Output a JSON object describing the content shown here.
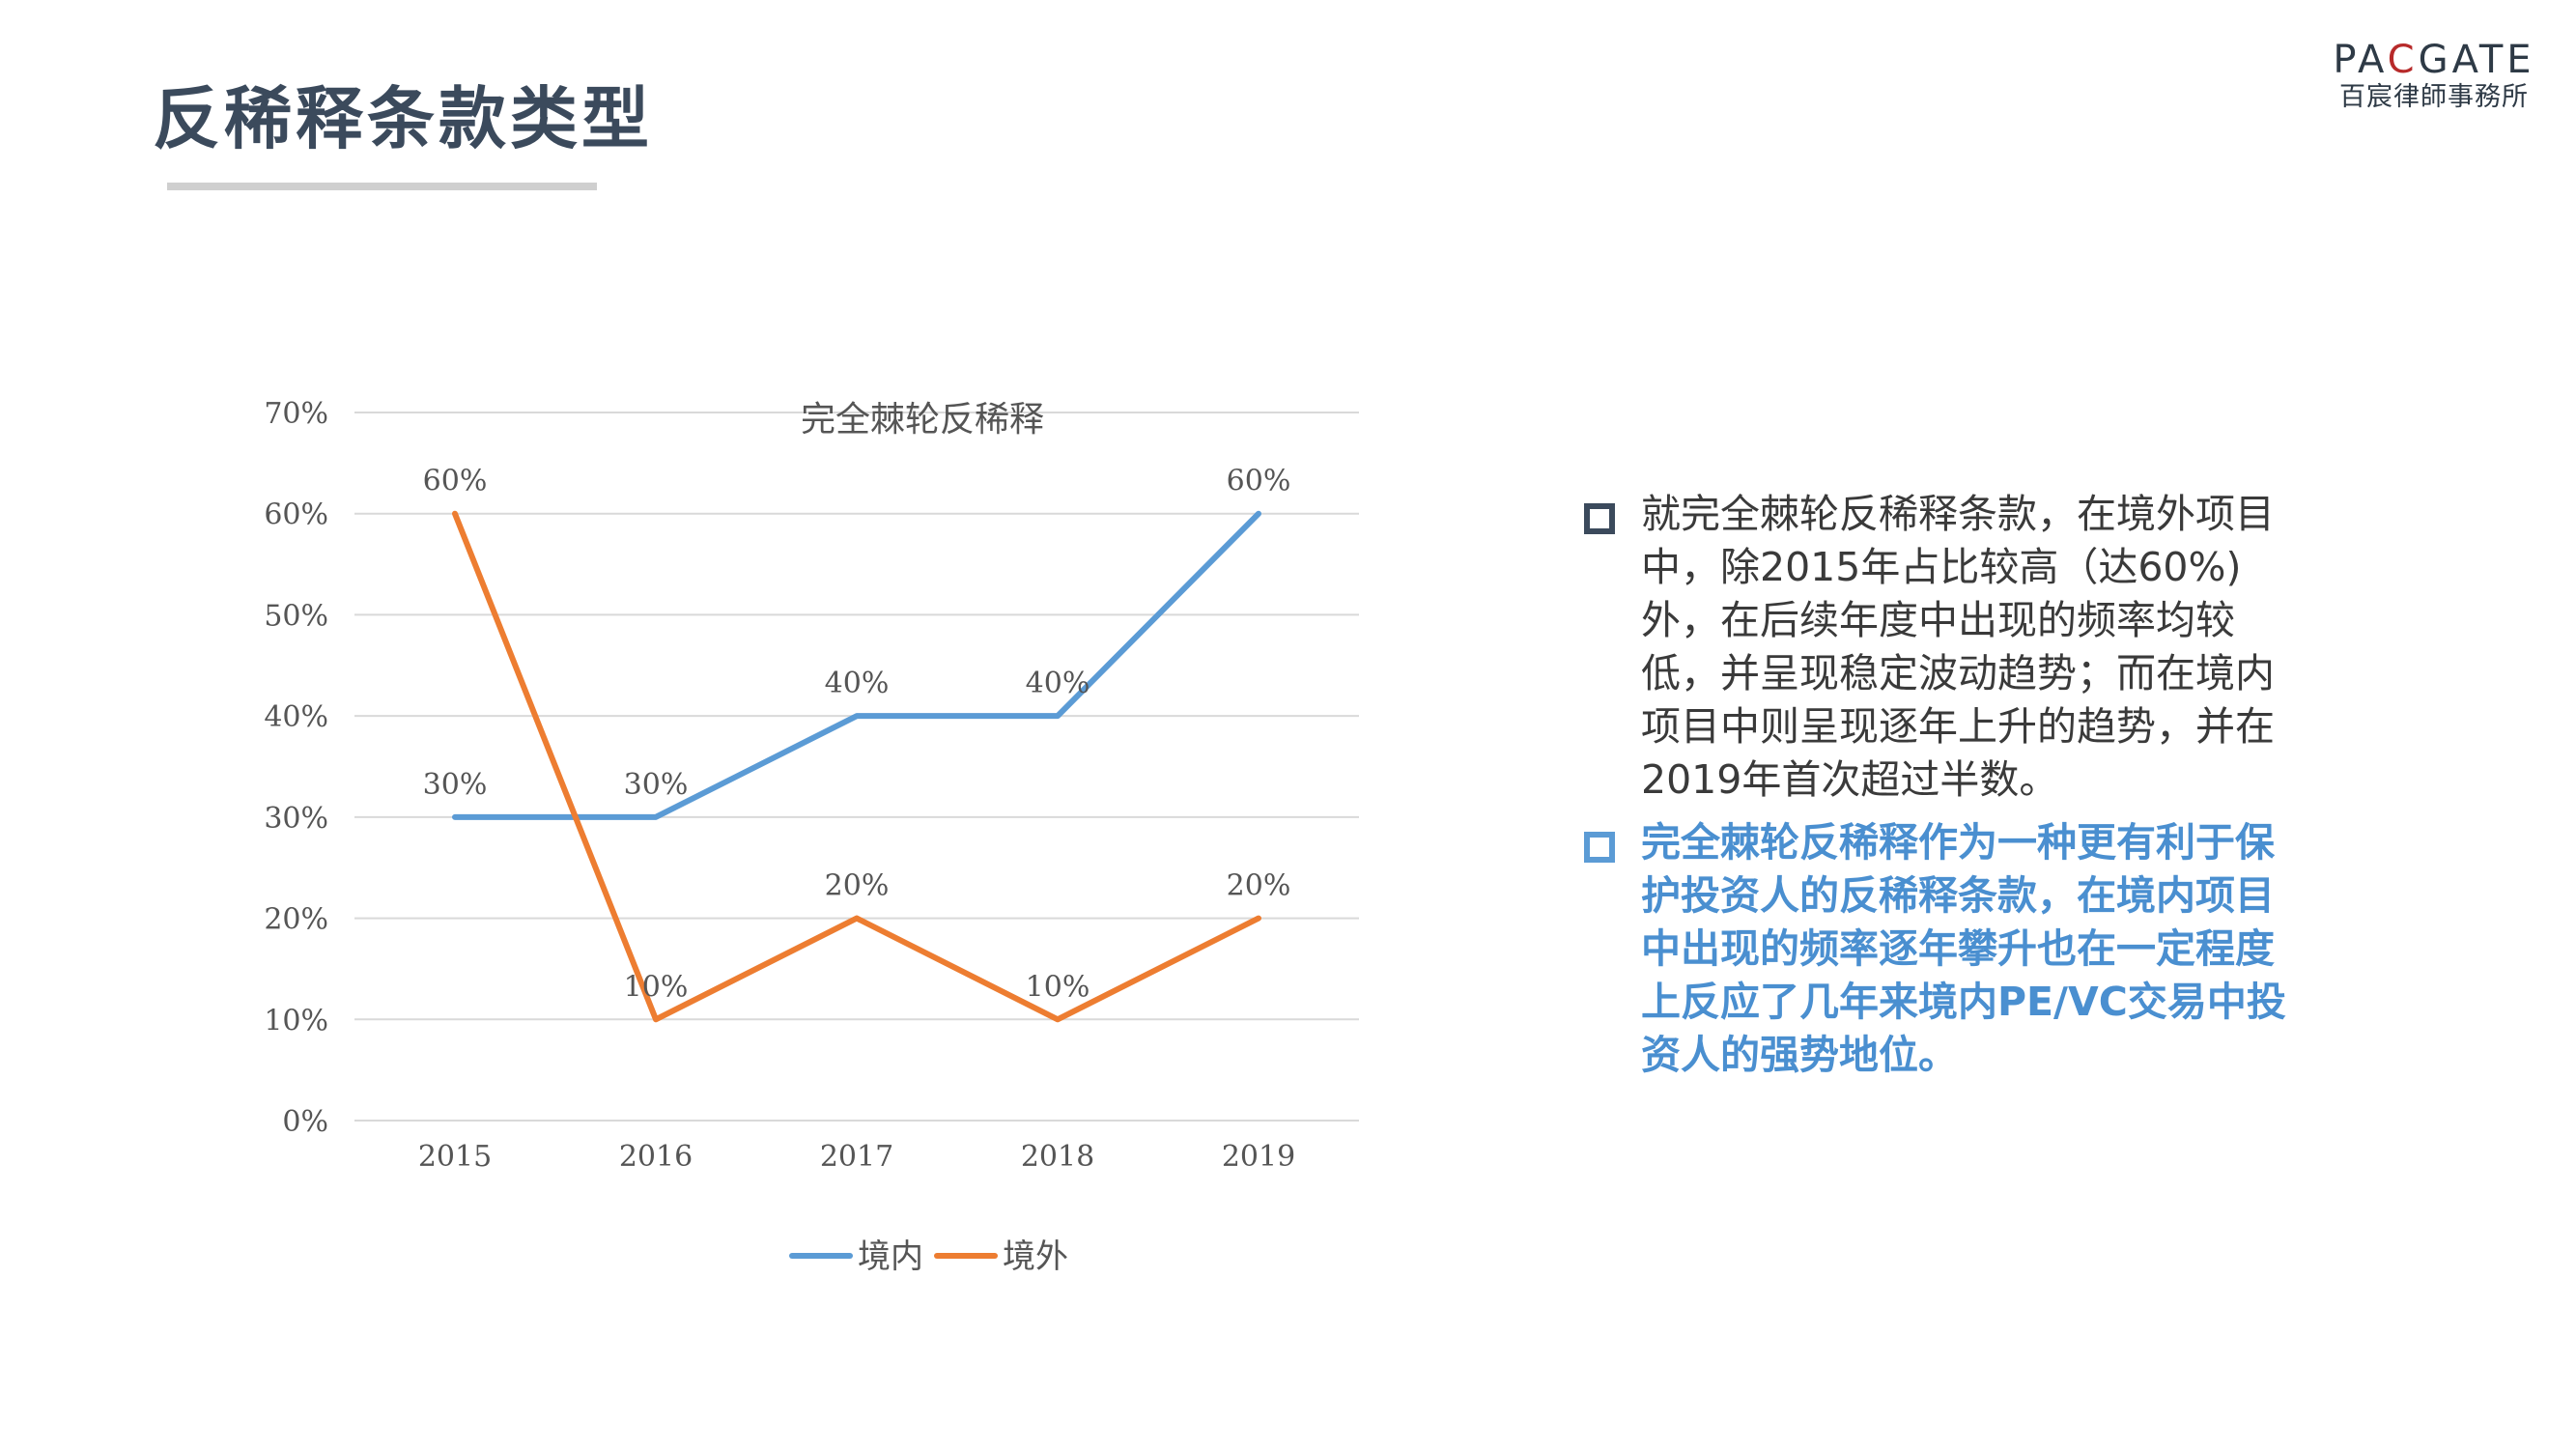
{
  "page": {
    "title": "反稀释条款类型"
  },
  "logo": {
    "word_part1": "PA",
    "word_accent": "C",
    "word_part2": "GATE",
    "subtitle": "百宸律師事務所"
  },
  "colors": {
    "title": "#3b4a5c",
    "domestic_series": "#5b9bd5",
    "overseas_series": "#ed7d31",
    "highlight_text": "#4a8fd0",
    "gridline": "#d9d9d9"
  },
  "chart_data": {
    "type": "line",
    "title": "完全棘轮反稀释",
    "xlabel": "",
    "ylabel": "",
    "categories": [
      "2015",
      "2016",
      "2017",
      "2018",
      "2019"
    ],
    "ylim": [
      0,
      70
    ],
    "yticks": [
      0,
      10,
      20,
      30,
      40,
      50,
      60,
      70
    ],
    "ytick_labels": [
      "0%",
      "10%",
      "20%",
      "30%",
      "40%",
      "50%",
      "60%",
      "70%"
    ],
    "grid": true,
    "legend_position": "bottom",
    "series": [
      {
        "name": "境内",
        "color": "#5b9bd5",
        "values": [
          30,
          30,
          40,
          40,
          60
        ],
        "data_labels": [
          "30%",
          "30%",
          "40%",
          "40%",
          "60%"
        ]
      },
      {
        "name": "境外",
        "color": "#ed7d31",
        "values": [
          60,
          10,
          20,
          10,
          20
        ],
        "data_labels": [
          "60%",
          "10%",
          "20%",
          "10%",
          "20%"
        ]
      }
    ]
  },
  "bullets": [
    {
      "text": "就完全棘轮反稀释条款，在境外项目中，除2015年占比较高（达60%)外，在后续年度中出现的频率均较低，并呈现稳定波动趋势；而在境内项目中则呈现逐年上升的趋势，并在2019年首次超过半数。",
      "highlight": false
    },
    {
      "text": "完全棘轮反稀释作为一种更有利于保护投资人的反稀释条款，在境内项目中出现的频率逐年攀升也在一定程度上反应了几年来境内PE/VC交易中投资人的强势地位。",
      "highlight": true
    }
  ]
}
